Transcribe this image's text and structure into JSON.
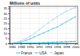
{
  "chart_data": {
    "type": "line",
    "title": "Millions of units",
    "x": [
      1986,
      1987,
      1988,
      1989,
      1990,
      1991,
      1992,
      1993,
      1994,
      1995,
      1996,
      1997,
      1998,
      1999,
      2000
    ],
    "series": [
      {
        "name": "France",
        "color": "#00c8ff",
        "marker": "point",
        "line_style": "solid",
        "values": [
          0.05,
          0.08,
          0.12,
          0.18,
          0.28,
          0.4,
          0.55,
          0.7,
          0.9,
          1.1,
          1.3,
          1.5,
          1.7,
          1.9,
          2.1
        ]
      },
      {
        "name": "USA",
        "color": "#50c0f0",
        "marker": "point",
        "line_style": "solid",
        "values": [
          0.3,
          0.7,
          1.5,
          2.8,
          4.5,
          6.5,
          8.5,
          10.5,
          12.5,
          14.5,
          16.5,
          19.0,
          21.5,
          24.0,
          26.5
        ]
      },
      {
        "name": "Japan",
        "color": "#a0d8ef",
        "marker": "point",
        "line_style": "solid",
        "values": [
          0.5,
          1.2,
          2.5,
          4.5,
          7.0,
          10.0,
          13.5,
          17.0,
          20.5,
          23.5,
          26.5,
          29.5,
          32.0,
          34.0,
          35.5
        ]
      }
    ],
    "xlim": [
      1985.5,
      2000.5
    ],
    "xticks": [
      1986,
      1988,
      1990,
      1992,
      1994,
      1996,
      1998,
      2000
    ],
    "ylim": [
      0,
      37
    ],
    "yticks": [
      0,
      5,
      10,
      15,
      20,
      25,
      30,
      35
    ],
    "grid": true,
    "legend": "bottom"
  }
}
